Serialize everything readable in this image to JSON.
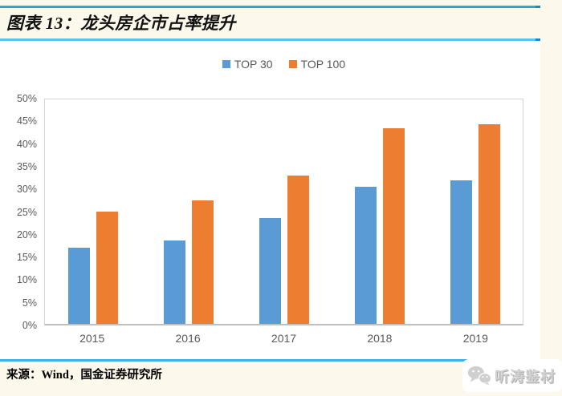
{
  "page": {
    "background_color": "#FDF8EC",
    "panel_color": "#FFFFFF",
    "accent_line_top_color": "#2CA6DF",
    "accent_line_under_title_color": "#5BC2EA",
    "accent_line_source_color": "#3FB2E6"
  },
  "header": {
    "title": "图表 13：龙头房企市占率提升"
  },
  "chart_data": {
    "type": "bar",
    "title": "龙头房企市占率提升",
    "categories": [
      "2015",
      "2016",
      "2017",
      "2018",
      "2019"
    ],
    "series": [
      {
        "name": "TOP 30",
        "color": "#5B9BD5",
        "values": [
          17,
          18.5,
          23.5,
          30.5,
          32
        ]
      },
      {
        "name": "TOP 100",
        "color": "#ED7D31",
        "values": [
          25,
          27.5,
          33,
          43.5,
          44.5
        ]
      }
    ],
    "xlabel": "",
    "ylabel": "",
    "ylim": [
      0,
      50
    ],
    "ytick_step": 5,
    "yticks": [
      "0%",
      "5%",
      "10%",
      "15%",
      "20%",
      "25%",
      "30%",
      "35%",
      "40%",
      "45%",
      "50%"
    ],
    "grid": false,
    "legend_position": "top-center",
    "axis_text_color": "#595959",
    "plot_border_color": "#D4D4D4"
  },
  "footer": {
    "source": "来源：Wind，国金证券研究所"
  },
  "watermark": {
    "icon": "wechat-icon",
    "text": "听涛鉴材"
  }
}
